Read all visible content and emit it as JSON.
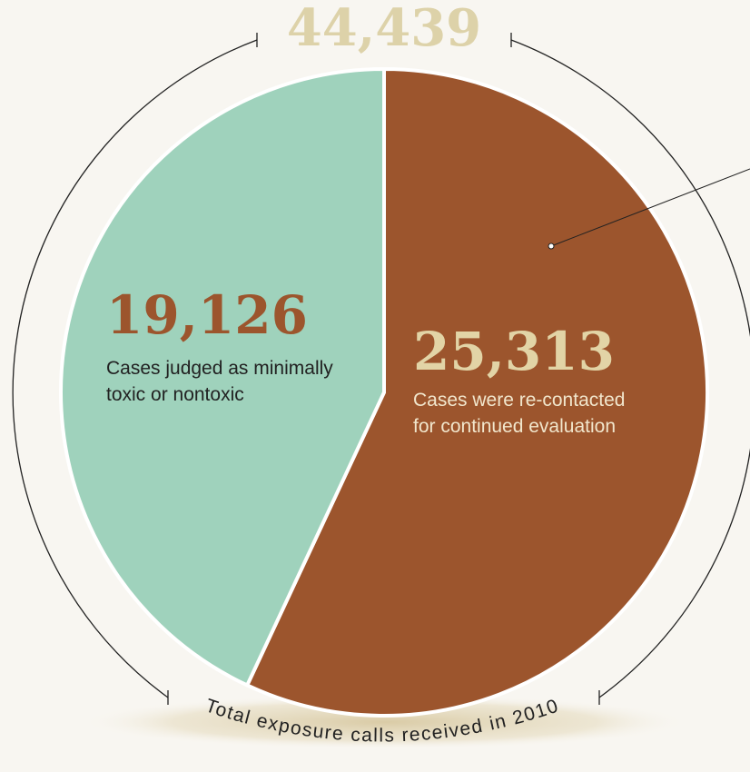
{
  "chart_data": {
    "type": "pie",
    "total": "44,439",
    "total_caption": "Total exposure calls received in 2010",
    "slices": [
      {
        "value_label": "25,313",
        "value": 25313,
        "text_line1": "Cases were re-contacted",
        "text_line2": "for continued evaluation",
        "color": "#9c552d",
        "value_color": "#e2d4a6",
        "text_color": "#f1e6cc"
      },
      {
        "value_label": "19,126",
        "value": 19126,
        "text_line1": "Cases judged as minimally",
        "text_line2": "toxic or nontoxic",
        "color": "#9fd2bc",
        "value_color": "#9c552d",
        "text_color": "#222222"
      }
    ],
    "colors": {
      "background": "#f8f6f1",
      "total": "#ddd2a9",
      "arc": "#222222",
      "shadow": "#d8c9a2"
    }
  }
}
